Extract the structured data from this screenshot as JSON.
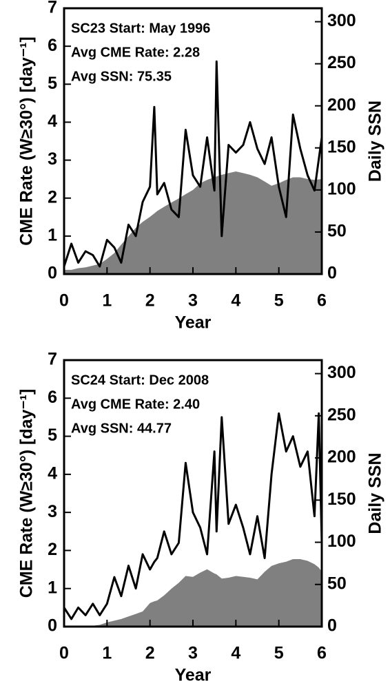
{
  "chart_data": [
    {
      "type": "line",
      "annotations": [
        "SC23 Start: May 1996",
        "Avg CME Rate: 2.28",
        "Avg SSN: 75.35"
      ],
      "x_label": "Year",
      "y_label": "CME Rate (W≥30°) [day⁻¹]",
      "y2_label": "Daily SSN",
      "xlim": [
        0,
        6
      ],
      "ylim": [
        0,
        7
      ],
      "y2lim": [
        0,
        316
      ],
      "xticks": [
        0,
        1,
        2,
        3,
        4,
        5,
        6
      ],
      "yticks": [
        0,
        1,
        2,
        3,
        4,
        5,
        6,
        7
      ],
      "y2ticks": [
        0,
        50,
        100,
        150,
        200,
        250,
        300
      ],
      "x": [
        0,
        0.17,
        0.33,
        0.5,
        0.67,
        0.83,
        1.0,
        1.17,
        1.33,
        1.5,
        1.67,
        1.83,
        2.0,
        2.1,
        2.17,
        2.33,
        2.5,
        2.67,
        2.83,
        3.0,
        3.17,
        3.33,
        3.5,
        3.55,
        3.67,
        3.83,
        4.0,
        4.17,
        4.33,
        4.5,
        4.67,
        4.83,
        5.0,
        5.17,
        5.33,
        5.5,
        5.67,
        5.83,
        6.0
      ],
      "series": [
        {
          "color": "#808080",
          "axis": "y2",
          "area": true,
          "values": [
            5,
            5,
            7,
            8,
            10,
            12,
            18,
            25,
            35,
            45,
            55,
            62,
            68,
            72,
            75,
            80,
            85,
            90,
            95,
            100,
            108,
            112,
            115,
            116,
            118,
            120,
            122,
            120,
            118,
            115,
            110,
            105,
            108,
            112,
            115,
            115,
            113,
            112,
            113
          ]
        },
        {
          "color": "#000000",
          "values": [
            0.2,
            0.8,
            0.3,
            0.6,
            0.5,
            0.2,
            0.9,
            0.7,
            0.3,
            1.3,
            1.0,
            1.9,
            2.3,
            4.4,
            2.1,
            2.4,
            1.7,
            1.5,
            3.8,
            2.6,
            2.3,
            3.6,
            2.2,
            5.6,
            1.0,
            3.4,
            3.2,
            3.4,
            4.0,
            3.3,
            2.9,
            3.6,
            2.3,
            1.5,
            4.2,
            3.3,
            2.6,
            2.2,
            3.6
          ]
        }
      ]
    },
    {
      "type": "line",
      "annotations": [
        "SC24 Start: Dec 2008",
        "Avg CME Rate: 2.40",
        "Avg SSN: 44.77"
      ],
      "x_label": "Year",
      "y_label": "CME Rate (W≥30°) [day⁻¹]",
      "y2_label": "Daily SSN",
      "xlim": [
        0,
        6
      ],
      "ylim": [
        0,
        7
      ],
      "y2lim": [
        0,
        316
      ],
      "xticks": [
        0,
        1,
        2,
        3,
        4,
        5,
        6
      ],
      "yticks": [
        0,
        1,
        2,
        3,
        4,
        5,
        6,
        7
      ],
      "y2ticks": [
        0,
        50,
        100,
        150,
        200,
        250,
        300
      ],
      "x": [
        0,
        0.17,
        0.33,
        0.5,
        0.67,
        0.83,
        1.0,
        1.17,
        1.33,
        1.5,
        1.67,
        1.83,
        2.0,
        2.1,
        2.17,
        2.33,
        2.5,
        2.67,
        2.83,
        3.0,
        3.17,
        3.33,
        3.5,
        3.55,
        3.67,
        3.83,
        4.0,
        4.17,
        4.33,
        4.5,
        4.67,
        4.83,
        5.0,
        5.17,
        5.33,
        5.5,
        5.67,
        5.83,
        5.93,
        6.0
      ],
      "series": [
        {
          "color": "#808080",
          "axis": "y2",
          "area": true,
          "values": [
            0,
            0,
            1,
            1,
            1,
            2,
            5,
            7,
            9,
            12,
            15,
            18,
            28,
            30,
            31,
            37,
            45,
            52,
            60,
            59,
            64,
            68,
            63,
            62,
            57,
            58,
            60,
            59,
            58,
            56,
            65,
            72,
            75,
            77,
            80,
            80,
            78,
            74,
            70,
            65
          ]
        },
        {
          "color": "#000000",
          "values": [
            0.5,
            0.2,
            0.5,
            0.3,
            0.6,
            0.3,
            0.6,
            1.3,
            0.8,
            1.6,
            1.0,
            1.9,
            1.5,
            1.7,
            1.8,
            2.5,
            1.9,
            2.2,
            4.3,
            3.0,
            2.6,
            1.9,
            4.6,
            2.5,
            5.5,
            2.7,
            3.2,
            2.6,
            1.9,
            2.9,
            1.8,
            4.0,
            5.6,
            4.6,
            5.0,
            4.2,
            4.6,
            2.9,
            5.6,
            2.2
          ]
        }
      ]
    }
  ]
}
